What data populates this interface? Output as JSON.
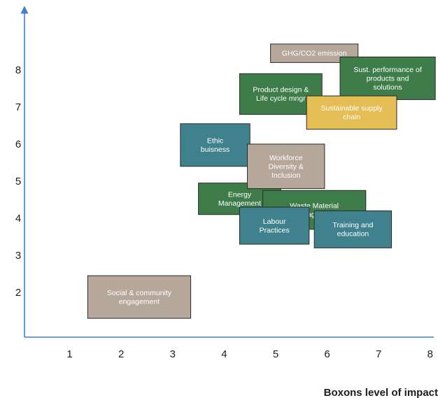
{
  "chart_data": {
    "type": "scatter",
    "xlabel": "Boxons level of impact",
    "ylabel": "",
    "xlim": [
      0,
      8
    ],
    "ylim": [
      0,
      9
    ],
    "x_ticks": [
      "1",
      "2",
      "3",
      "4",
      "5",
      "6",
      "7",
      "8"
    ],
    "y_ticks": [
      "2",
      "3",
      "4",
      "5",
      "6",
      "7",
      "8"
    ],
    "grid": false,
    "legend": "none",
    "colors": {
      "axis": "#3f7fd6",
      "taupe": "#b5a89b",
      "green": "#3e7d4a",
      "teal": "#40818e",
      "yellow": "#e4bd55"
    },
    "items": [
      {
        "lines": [
          "Social & community",
          "engagement"
        ],
        "x": [
          1.35,
          3.35
        ],
        "y": [
          1.3,
          2.45
        ],
        "color": "taupe"
      },
      {
        "lines": [
          "Energy",
          "Management"
        ],
        "x": [
          3.5,
          5.1
        ],
        "y": [
          4.1,
          4.95
        ],
        "color": "green"
      },
      {
        "lines": [
          "Waste Material",
          "Management"
        ],
        "x": [
          4.75,
          6.75
        ],
        "y": [
          3.7,
          4.75
        ],
        "color": "green"
      },
      {
        "lines": [
          "Labour",
          "Practices"
        ],
        "x": [
          4.3,
          5.65
        ],
        "y": [
          3.3,
          4.3
        ],
        "color": "teal"
      },
      {
        "lines": [
          "Training and",
          "education"
        ],
        "x": [
          5.75,
          7.25
        ],
        "y": [
          3.2,
          4.2
        ],
        "color": "teal"
      },
      {
        "lines": [
          "Ethic",
          "buisness"
        ],
        "x": [
          3.15,
          4.5
        ],
        "y": [
          5.4,
          6.55
        ],
        "color": "teal"
      },
      {
        "lines": [
          "Workforce",
          "Diversity &",
          "Inclusion"
        ],
        "x": [
          4.45,
          5.95
        ],
        "y": [
          4.8,
          6.0
        ],
        "color": "taupe"
      },
      {
        "lines": [
          "GHG/CO2 emission"
        ],
        "x": [
          4.9,
          6.6
        ],
        "y": [
          8.2,
          8.7
        ],
        "color": "taupe"
      },
      {
        "lines": [
          "Sust. performance of",
          "products and",
          "solutions"
        ],
        "x": [
          6.25,
          8.1
        ],
        "y": [
          7.2,
          8.35
        ],
        "color": "green"
      },
      {
        "lines": [
          "Product design &",
          "Life cycle mngr"
        ],
        "x": [
          4.3,
          5.9
        ],
        "y": [
          6.8,
          7.9
        ],
        "color": "green"
      },
      {
        "lines": [
          "Sustainable supply",
          "chain"
        ],
        "x": [
          5.6,
          7.35
        ],
        "y": [
          6.4,
          7.3
        ],
        "color": "yellow"
      }
    ]
  }
}
